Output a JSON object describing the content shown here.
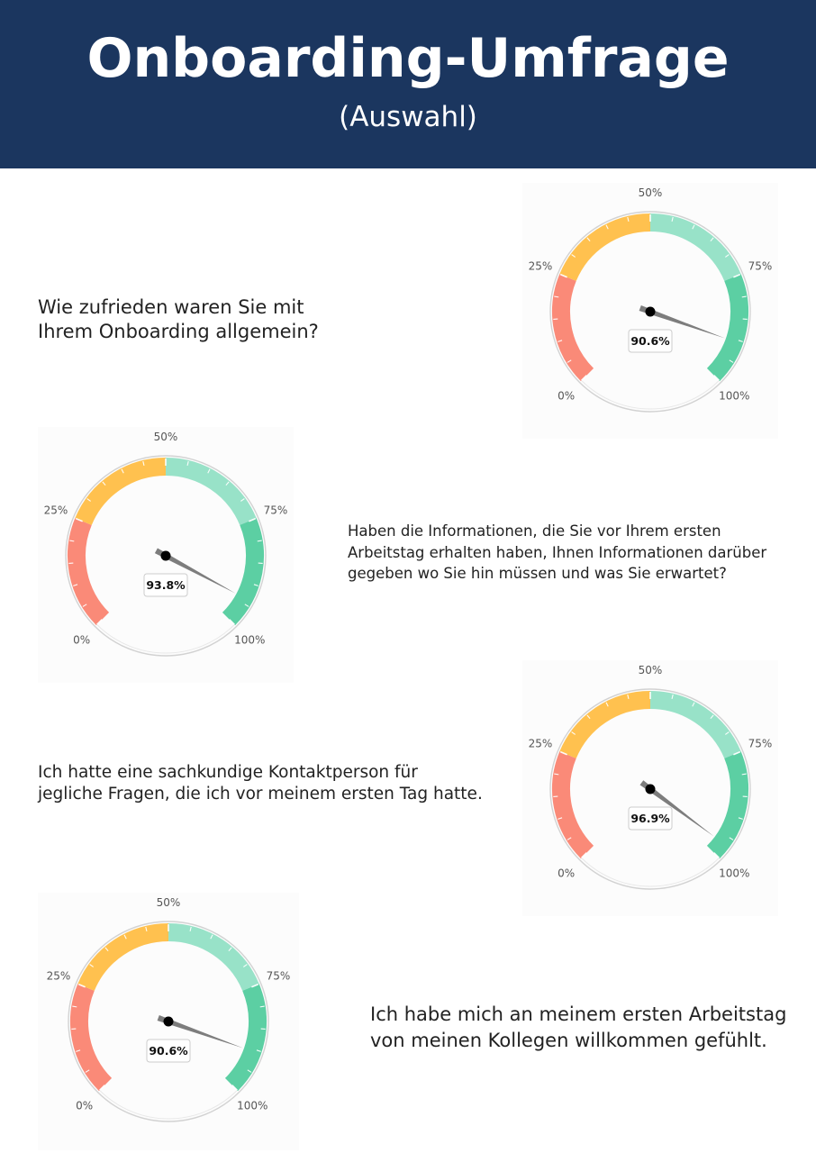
{
  "header": {
    "title": "Onboarding-Umfrage",
    "subtitle": "(Auswahl)"
  },
  "questions": [
    {
      "text_lines": [
        "Wie zufrieden waren Sie mit",
        "Ihrem Onboarding allgemein?"
      ]
    },
    {
      "text_lines": [
        "Haben die Informationen, die Sie vor Ihrem ersten",
        "Arbeitstag erhalten haben, Ihnen Informationen darüber",
        "gegeben wo Sie hin müssen und was Sie erwartet?"
      ]
    },
    {
      "text_lines": [
        "Ich hatte eine sachkundige Kontaktperson für",
        "jegliche Fragen, die ich vor meinem ersten Tag hatte."
      ]
    },
    {
      "text_lines": [
        "Ich habe mich an meinem ersten Arbeitstag",
        "von meinen Kollegen willkommen gefühlt."
      ]
    }
  ],
  "colors": {
    "header_bg": "#1b365f",
    "band_red": "#fa8a78",
    "band_orange": "#ffc14f",
    "band_lightgreen": "#98e2c8",
    "band_green": "#5ccfa3",
    "needle": "#7d7d7d"
  },
  "chart_data": [
    {
      "type": "gauge",
      "value": 90.6,
      "value_label": "90.6%",
      "range": [
        0,
        100
      ],
      "tick_labels": [
        "0%",
        "25%",
        "50%",
        "75%",
        "100%"
      ],
      "bands": [
        {
          "from": 0,
          "to": 25,
          "color": "#fa8a78"
        },
        {
          "from": 25,
          "to": 50,
          "color": "#ffc14f"
        },
        {
          "from": 50,
          "to": 75,
          "color": "#98e2c8"
        },
        {
          "from": 75,
          "to": 100,
          "color": "#5ccfa3"
        }
      ]
    },
    {
      "type": "gauge",
      "value": 93.8,
      "value_label": "93.8%",
      "range": [
        0,
        100
      ],
      "tick_labels": [
        "0%",
        "25%",
        "50%",
        "75%",
        "100%"
      ],
      "bands": [
        {
          "from": 0,
          "to": 25,
          "color": "#fa8a78"
        },
        {
          "from": 25,
          "to": 50,
          "color": "#ffc14f"
        },
        {
          "from": 50,
          "to": 75,
          "color": "#98e2c8"
        },
        {
          "from": 75,
          "to": 100,
          "color": "#5ccfa3"
        }
      ]
    },
    {
      "type": "gauge",
      "value": 96.9,
      "value_label": "96.9%",
      "range": [
        0,
        100
      ],
      "tick_labels": [
        "0%",
        "25%",
        "50%",
        "75%",
        "100%"
      ],
      "bands": [
        {
          "from": 0,
          "to": 25,
          "color": "#fa8a78"
        },
        {
          "from": 25,
          "to": 50,
          "color": "#ffc14f"
        },
        {
          "from": 50,
          "to": 75,
          "color": "#98e2c8"
        },
        {
          "from": 75,
          "to": 100,
          "color": "#5ccfa3"
        }
      ]
    },
    {
      "type": "gauge",
      "value": 90.6,
      "value_label": "90.6%",
      "range": [
        0,
        100
      ],
      "tick_labels": [
        "0%",
        "25%",
        "50%",
        "75%",
        "100%"
      ],
      "bands": [
        {
          "from": 0,
          "to": 25,
          "color": "#fa8a78"
        },
        {
          "from": 25,
          "to": 50,
          "color": "#ffc14f"
        },
        {
          "from": 50,
          "to": 75,
          "color": "#98e2c8"
        },
        {
          "from": 75,
          "to": 100,
          "color": "#5ccfa3"
        }
      ]
    }
  ]
}
